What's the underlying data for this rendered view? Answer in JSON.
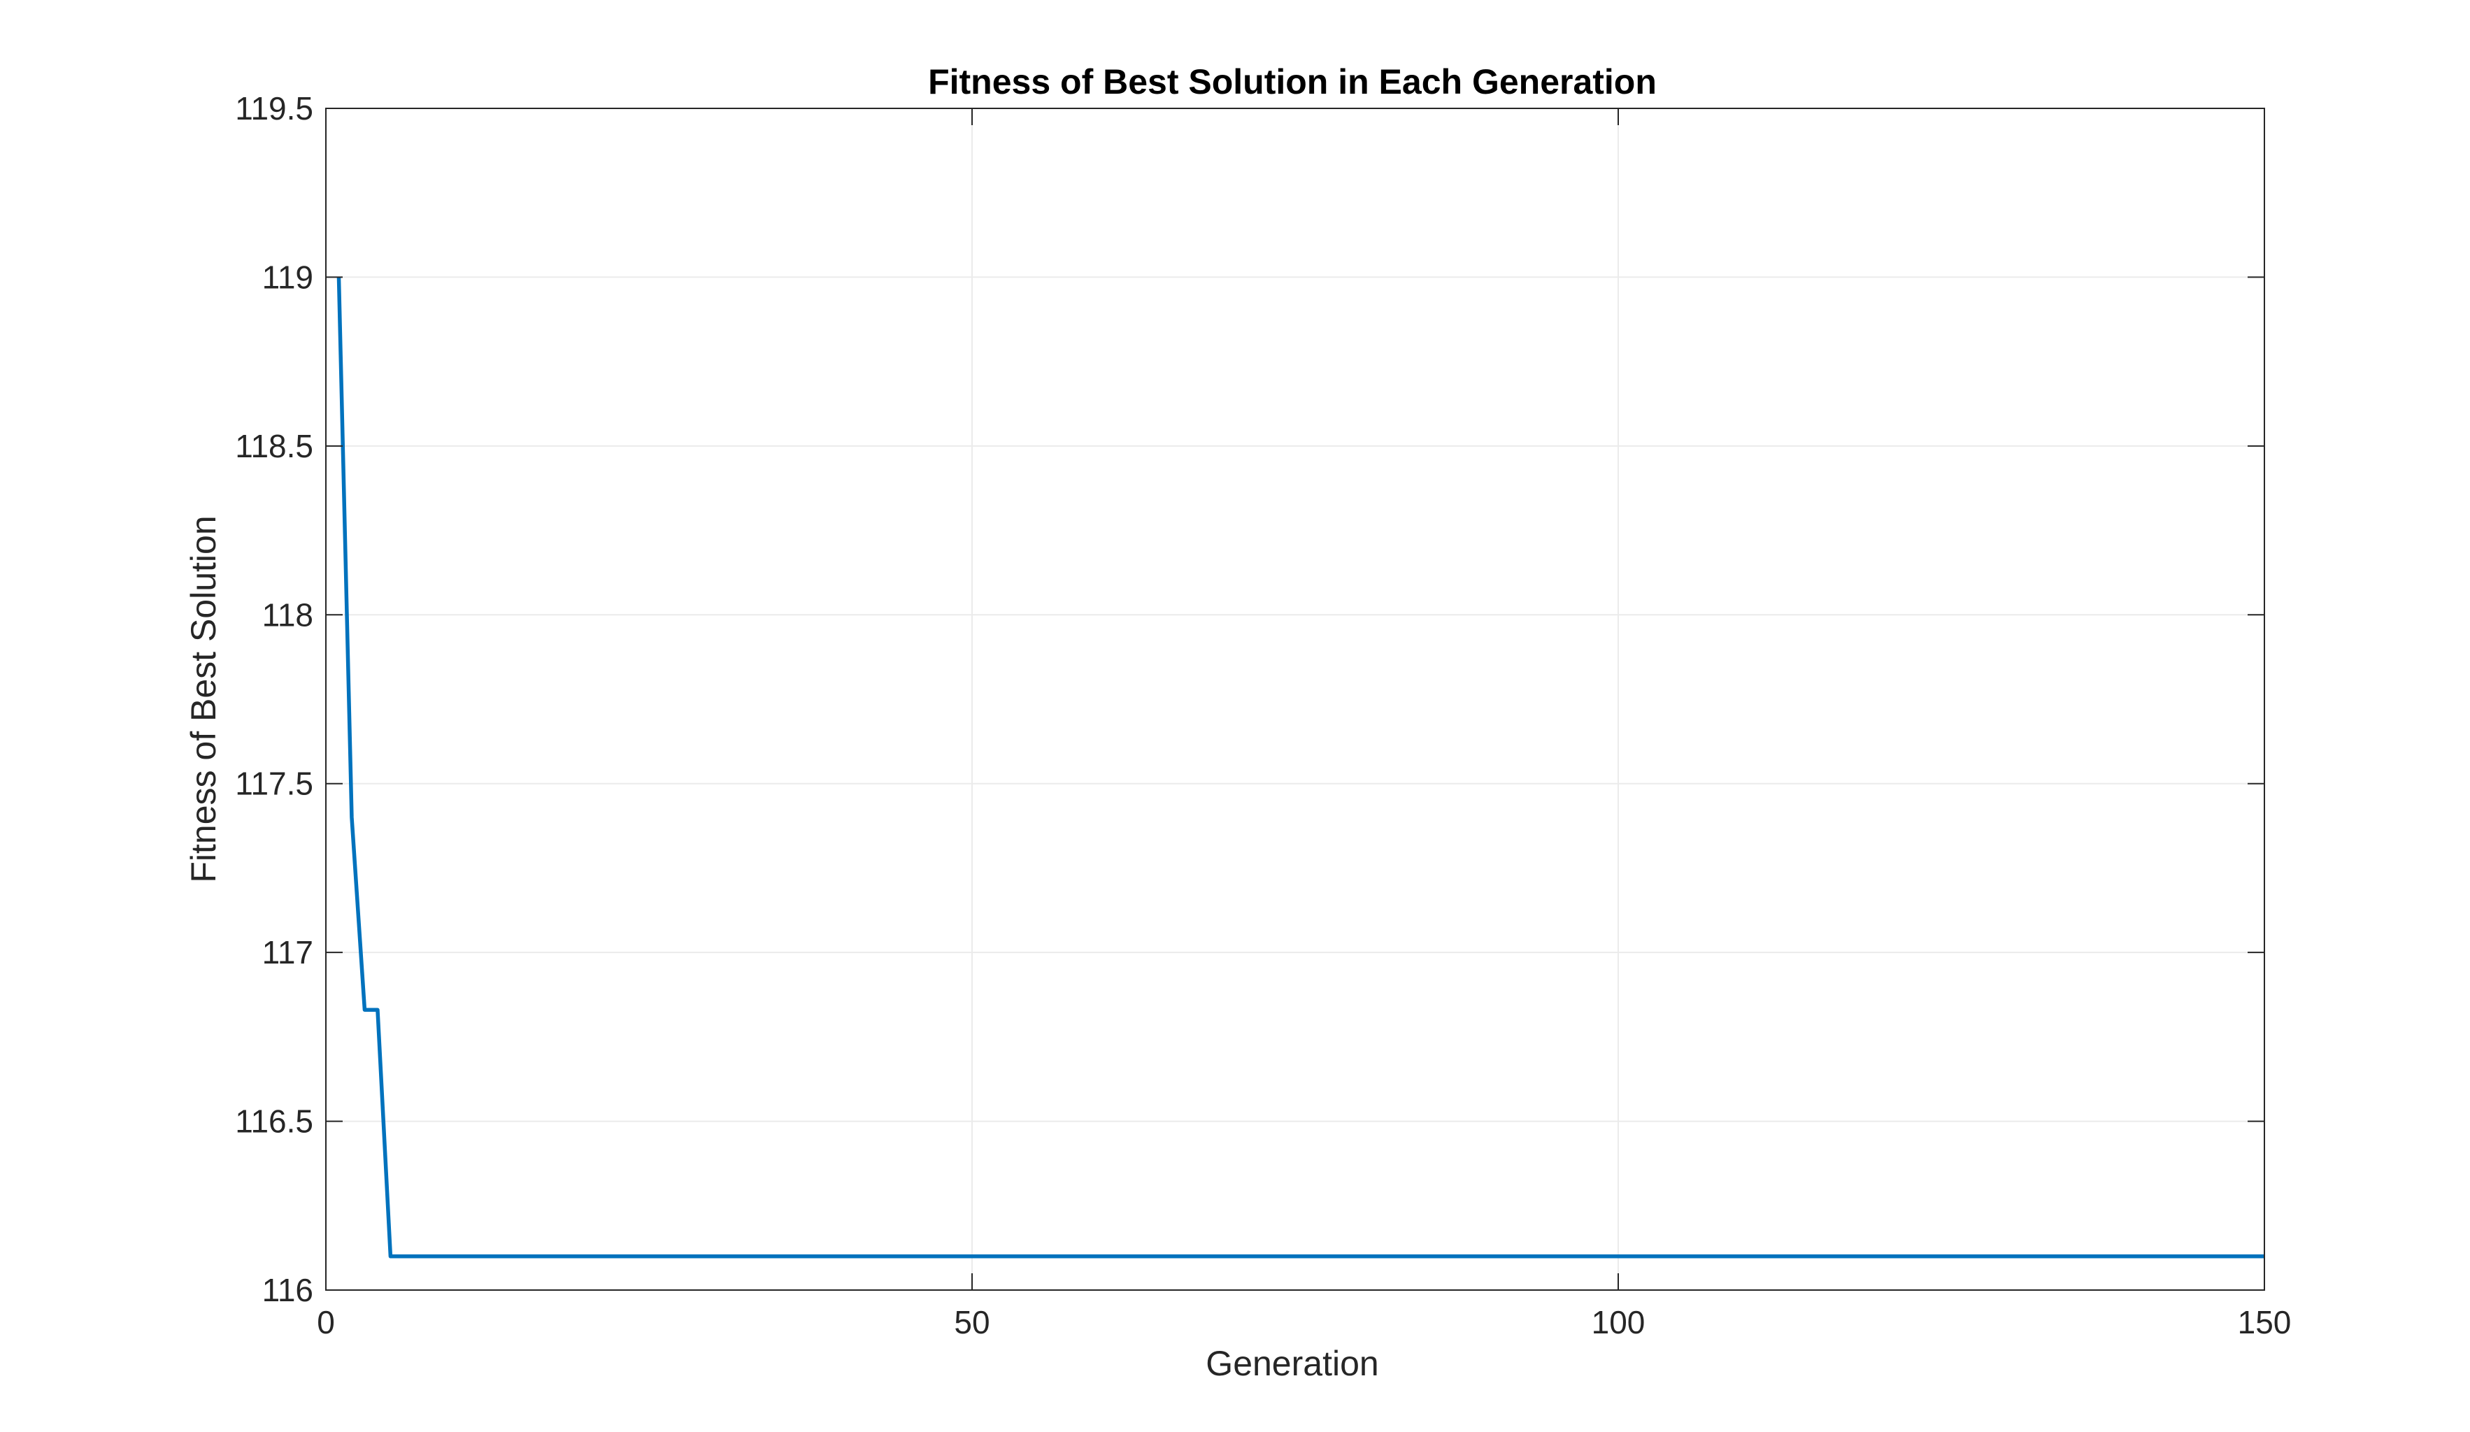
{
  "chart_data": {
    "type": "line",
    "title": "Fitness of Best Solution in Each Generation",
    "xlabel": "Generation",
    "ylabel": "Fitness of Best Solution",
    "xlim": [
      0,
      150
    ],
    "ylim": [
      116,
      119.5
    ],
    "xticks": [
      0,
      50,
      100,
      150
    ],
    "xtick_labels": [
      "0",
      "50",
      "100",
      "150"
    ],
    "yticks": [
      116,
      116.5,
      117,
      117.5,
      118,
      118.5,
      119,
      119.5
    ],
    "ytick_labels": [
      "116",
      "116.5",
      "117",
      "117.5",
      "118",
      "118.5",
      "119",
      "119.5"
    ],
    "grid": true,
    "legend": "none",
    "series": [
      {
        "color": "#0072BD",
        "x": [
          1,
          2,
          3,
          4,
          5,
          6,
          150
        ],
        "y": [
          119.0,
          117.4,
          116.83,
          116.83,
          116.1,
          116.1,
          116.1
        ]
      }
    ]
  }
}
